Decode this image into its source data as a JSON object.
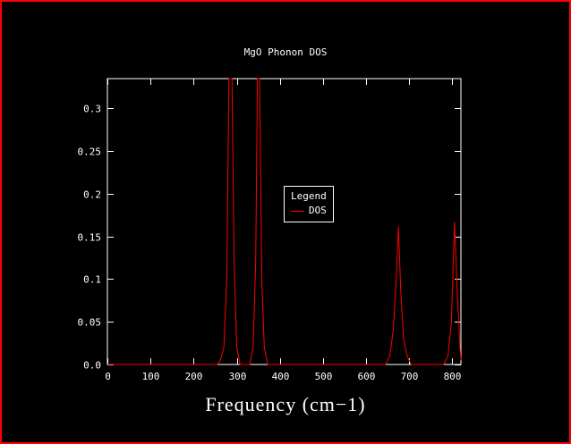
{
  "window": {
    "background": "#000000",
    "border_color": "#ff0000",
    "text_color": "#ffffff"
  },
  "chart_data": {
    "type": "line",
    "title": "MgO Phonon DOS",
    "xlabel": "Frequency (cm−1)",
    "ylabel": "",
    "xlim": [
      0,
      820
    ],
    "ylim": [
      0,
      0.335
    ],
    "x_ticks": [
      0,
      100,
      200,
      300,
      400,
      500,
      600,
      700,
      800
    ],
    "y_ticks": [
      0,
      0.05,
      0.1,
      0.15,
      0.2,
      0.25,
      0.3
    ],
    "y_tick_labels": [
      "0.0",
      "0.05",
      "0.1",
      "0.15",
      "0.2",
      "0.25",
      "0.3"
    ],
    "grid": false,
    "axis_color": "#ffffff",
    "legend": {
      "title": "Legend",
      "position": "inside-center",
      "entries": [
        {
          "label": "DOS",
          "color": "#ff0000"
        }
      ]
    },
    "series": [
      {
        "name": "DOS",
        "color": "#ff0000",
        "points": [
          [
            0,
            0
          ],
          [
            255,
            0
          ],
          [
            262,
            0.005
          ],
          [
            270,
            0.02
          ],
          [
            277,
            0.1
          ],
          [
            282,
            0.35
          ],
          [
            285,
            0.55
          ],
          [
            289,
            0.55
          ],
          [
            294,
            0.12
          ],
          [
            300,
            0.02
          ],
          [
            308,
            0
          ],
          [
            330,
            0
          ],
          [
            338,
            0.02
          ],
          [
            344,
            0.12
          ],
          [
            348,
            0.55
          ],
          [
            353,
            0.55
          ],
          [
            358,
            0.1
          ],
          [
            364,
            0.02
          ],
          [
            372,
            0
          ],
          [
            380,
            0
          ],
          [
            630,
            0
          ],
          [
            645,
            0
          ],
          [
            655,
            0.01
          ],
          [
            663,
            0.04
          ],
          [
            670,
            0.1
          ],
          [
            675,
            0.162
          ],
          [
            680,
            0.09
          ],
          [
            687,
            0.03
          ],
          [
            695,
            0.01
          ],
          [
            705,
            0
          ],
          [
            780,
            0
          ],
          [
            790,
            0.01
          ],
          [
            798,
            0.05
          ],
          [
            805,
            0.167
          ],
          [
            812,
            0.08
          ],
          [
            818,
            0.02
          ],
          [
            820,
            0.005
          ]
        ]
      }
    ]
  }
}
